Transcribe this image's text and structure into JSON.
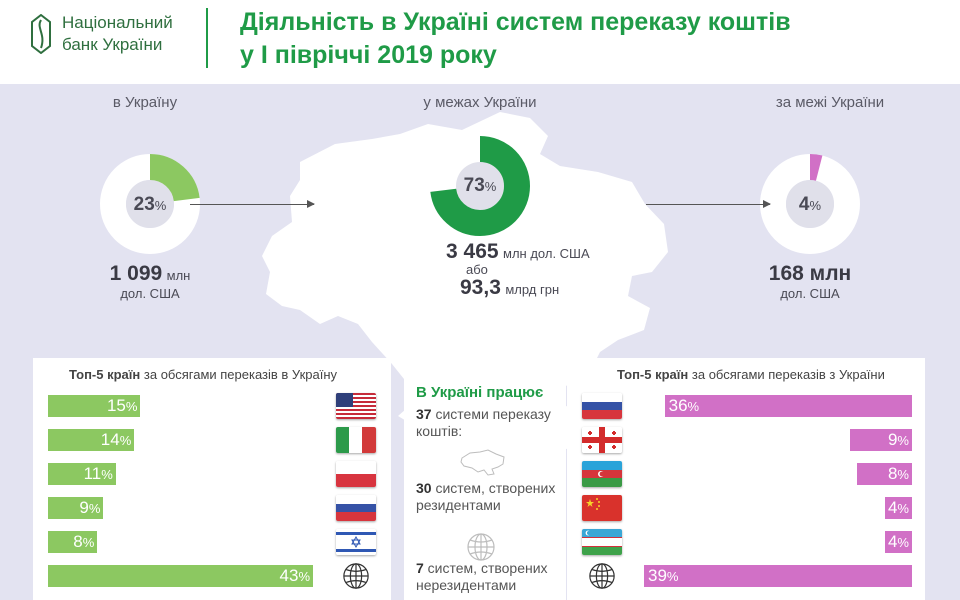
{
  "header": {
    "bank_name_line1": "Національний",
    "bank_name_line2": "банк України",
    "title_line1": "Діяльність в Україні систем переказу коштів",
    "title_line2": "у І півріччі 2019 року"
  },
  "colors": {
    "green_dark": "#1f9b47",
    "green_light": "#8cc861",
    "pink": "#d170c6",
    "band_bg": "#e3e3f1",
    "map_fill": "#ffffff"
  },
  "chart_data": [
    {
      "type": "pie",
      "label": "в Україну",
      "value_percent": 23,
      "percent_text": "23",
      "amount_value": "1 099",
      "amount_unit": "млн",
      "amount_unit2": "дол. США",
      "color": "#8cc861"
    },
    {
      "type": "pie",
      "label": "у межах України",
      "value_percent": 73,
      "percent_text": "73",
      "amount_value": "3 465",
      "amount_unit": "млн дол. США",
      "or_text": "або",
      "amount2_value": "93,3",
      "amount2_unit": "млрд грн",
      "color": "#1f9b47"
    },
    {
      "type": "pie",
      "label": "за межі України",
      "value_percent": 4,
      "percent_text": "4",
      "amount_value": "168 млн",
      "amount_unit": "дол. США",
      "color": "#d170c6"
    },
    {
      "type": "bar",
      "title_bold": "Топ-5 країн",
      "title_rest": " за обсягами переказів в Україну",
      "categories": [
        "США",
        "Італія",
        "Польща",
        "Росія",
        "Ізраїль",
        "Інші"
      ],
      "values": [
        15,
        14,
        11,
        9,
        8,
        43
      ],
      "labels": [
        "15",
        "14",
        "11",
        "9",
        "8",
        "43"
      ],
      "icons": [
        "flag-usa",
        "flag-italy",
        "flag-poland",
        "flag-russia",
        "flag-israel",
        "globe-icon"
      ],
      "color": "#8cc861"
    },
    {
      "type": "bar",
      "title_bold": "Топ-5 країн",
      "title_rest": " за обсягами переказів з України",
      "categories": [
        "Росія",
        "Грузія",
        "Азербайджан",
        "Китай",
        "Узбекистан",
        "Інші"
      ],
      "values": [
        36,
        9,
        8,
        4,
        4,
        39
      ],
      "labels": [
        "36",
        "9",
        "8",
        "4",
        "4",
        "39"
      ],
      "icons": [
        "flag-russia",
        "flag-georgia",
        "flag-azerbaijan",
        "flag-china",
        "flag-uzbekistan",
        "globe-icon"
      ],
      "color": "#d170c6"
    }
  ],
  "percent_sign": "%",
  "center": {
    "title": "В Україні працює",
    "systems_total_num": "37",
    "systems_total_text1": " системи переказу",
    "systems_total_text2": "коштів:",
    "residents_num": "30",
    "residents_text1": " систем, створених",
    "residents_text2": "резидентами",
    "nonresidents_num": "7",
    "nonresidents_text1": " систем, створених",
    "nonresidents_text2": "нерезидентами"
  }
}
